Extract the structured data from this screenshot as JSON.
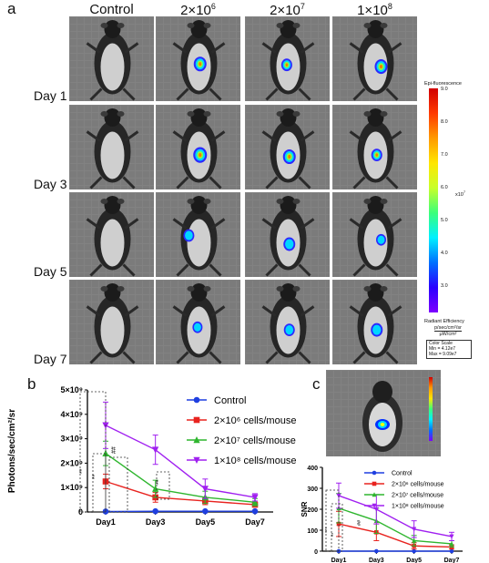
{
  "panel_a": {
    "letter": "a",
    "columns": [
      {
        "base": "Control",
        "exp": ""
      },
      {
        "base": "2×10",
        "exp": "6"
      },
      {
        "base": "2×10",
        "exp": "7"
      },
      {
        "base": "1×10",
        "exp": "8"
      }
    ],
    "rows": [
      "Day 1",
      "Day 3",
      "Day 5",
      "Day 7"
    ],
    "colorbar": {
      "title": "Epi-fluorescence",
      "ticks": [
        "9.0",
        "8.0",
        "7.0",
        "6.0",
        "5.0",
        "4.0",
        "3.0"
      ],
      "exponent": "x10",
      "exponent_power": "7",
      "footer_title": "Radiant Efficiency",
      "footer_unit_top": "p/sec/cm²/sr",
      "footer_unit_bottom": "μW/cm²",
      "scale_title": "Color Scale",
      "scale_min": "Min = 4.12e7",
      "scale_max": "Max = 9.09e7"
    }
  },
  "panel_b": {
    "letter": "b"
  },
  "panel_c": {
    "letter": "c"
  },
  "chart_data": [
    {
      "type": "line",
      "categories": [
        "Day1",
        "Day3",
        "Day5",
        "Day7"
      ],
      "ylabel": "Photons/sec/cm²/sr",
      "ylim": [
        0,
        5000000000.0
      ],
      "yticks": [
        "0",
        "1×10⁹",
        "2×10⁹",
        "3×10⁹",
        "4×10⁹",
        "5×10⁹"
      ],
      "legend_position": "top-right",
      "series": [
        {
          "name": "Control",
          "color": "#1f3fe0",
          "marker": "circle",
          "values": [
            20000000.0,
            30000000.0,
            30000000.0,
            30000000.0
          ],
          "errors": [
            0,
            0,
            0,
            0
          ]
        },
        {
          "name": "2×10⁶ cells/mouse",
          "color": "#e8231f",
          "marker": "square",
          "values": [
            1250000000.0,
            600000000.0,
            450000000.0,
            300000000.0
          ],
          "errors": [
            300000000.0,
            200000000.0,
            150000000.0,
            100000000.0
          ]
        },
        {
          "name": "2×10⁷ cells/mouse",
          "color": "#2fb62f",
          "marker": "triangle",
          "values": [
            2400000000.0,
            950000000.0,
            600000000.0,
            400000000.0
          ],
          "errors": [
            500000000.0,
            350000000.0,
            250000000.0,
            150000000.0
          ]
        },
        {
          "name": "1×10⁸ cells/mouse",
          "color": "#a020f0",
          "marker": "triangle-down",
          "values": [
            3550000000.0,
            2550000000.0,
            950000000.0,
            600000000.0
          ],
          "errors": [
            950000000.0,
            600000000.0,
            400000000.0,
            150000000.0
          ]
        }
      ],
      "significance": [
        "**",
        "**",
        "##",
        "**"
      ]
    },
    {
      "type": "line",
      "categories": [
        "Day1",
        "Day3",
        "Day5",
        "Day7"
      ],
      "ylabel": "SNR",
      "ylim": [
        0,
        400
      ],
      "yticks": [
        "0",
        "100",
        "200",
        "300",
        "400"
      ],
      "legend_position": "top-right",
      "series": [
        {
          "name": "Control",
          "color": "#1f3fe0",
          "marker": "circle",
          "values": [
            0,
            0,
            0,
            0
          ],
          "errors": [
            0,
            0,
            0,
            0
          ]
        },
        {
          "name": "2×10⁶ cells/mouse",
          "color": "#e8231f",
          "marker": "square",
          "values": [
            130,
            90,
            25,
            20
          ],
          "errors": [
            60,
            40,
            15,
            10
          ]
        },
        {
          "name": "2×10⁷ cells/mouse",
          "color": "#2fb62f",
          "marker": "triangle",
          "values": [
            205,
            145,
            50,
            35
          ],
          "errors": [
            70,
            60,
            25,
            15
          ]
        },
        {
          "name": "1×10⁸ cells/mouse",
          "color": "#a020f0",
          "marker": "triangle-down",
          "values": [
            265,
            200,
            105,
            70
          ],
          "errors": [
            60,
            70,
            40,
            20
          ]
        }
      ],
      "significance": [
        "***",
        "**",
        "##"
      ]
    }
  ]
}
